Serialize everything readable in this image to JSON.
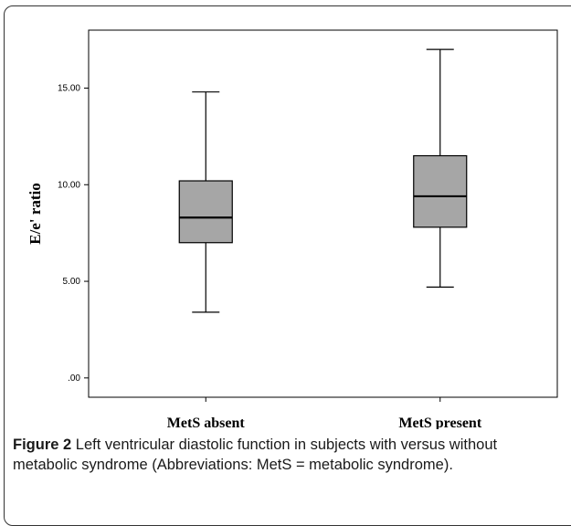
{
  "figure": {
    "label": "Figure 2",
    "caption": "Left ventricular diastolic function in subjects with versus without metabolic syndrome (Abbreviations: MetS = metabolic syndrome)."
  },
  "chart_data": {
    "type": "boxplot",
    "title": "",
    "xlabel": "",
    "ylabel": "E/e' ratio",
    "ylim": [
      -1.0,
      18.0
    ],
    "yticks": [
      0,
      5,
      10,
      15
    ],
    "ytick_labels": [
      ".00",
      "5.00",
      "10.00",
      "15.00"
    ],
    "categories": [
      "MetS absent",
      "MetS present"
    ],
    "boxes": [
      {
        "category": "MetS absent",
        "min": 3.4,
        "q1": 7.0,
        "median": 8.3,
        "q3": 10.2,
        "max": 14.8
      },
      {
        "category": "MetS present",
        "min": 4.7,
        "q1": 7.8,
        "median": 9.4,
        "q3": 11.5,
        "max": 17.0
      }
    ],
    "grid": false,
    "colors": {
      "box_fill": "#a6a6a6",
      "stroke": "#000000"
    }
  }
}
